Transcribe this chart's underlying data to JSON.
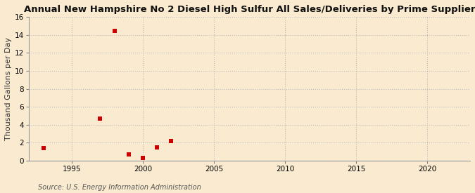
{
  "title": "Annual New Hampshire No 2 Diesel High Sulfur All Sales/Deliveries by Prime Supplier",
  "ylabel": "Thousand Gallons per Day",
  "source": "Source: U.S. Energy Information Administration",
  "x_data": [
    1993,
    1997,
    1998,
    1999,
    2000,
    2001,
    2002
  ],
  "y_data": [
    1.4,
    4.7,
    14.4,
    0.7,
    0.3,
    1.5,
    2.2
  ],
  "marker_color": "#cc0000",
  "marker": "s",
  "marker_size": 4,
  "xlim": [
    1992,
    2023
  ],
  "ylim": [
    0,
    16
  ],
  "yticks": [
    0,
    2,
    4,
    6,
    8,
    10,
    12,
    14,
    16
  ],
  "xticks": [
    1995,
    2000,
    2005,
    2010,
    2015,
    2020
  ],
  "grid_color": "#bbbbbb",
  "background_color": "#faebd0",
  "title_fontsize": 9.5,
  "label_fontsize": 8,
  "tick_fontsize": 7.5,
  "source_fontsize": 7
}
